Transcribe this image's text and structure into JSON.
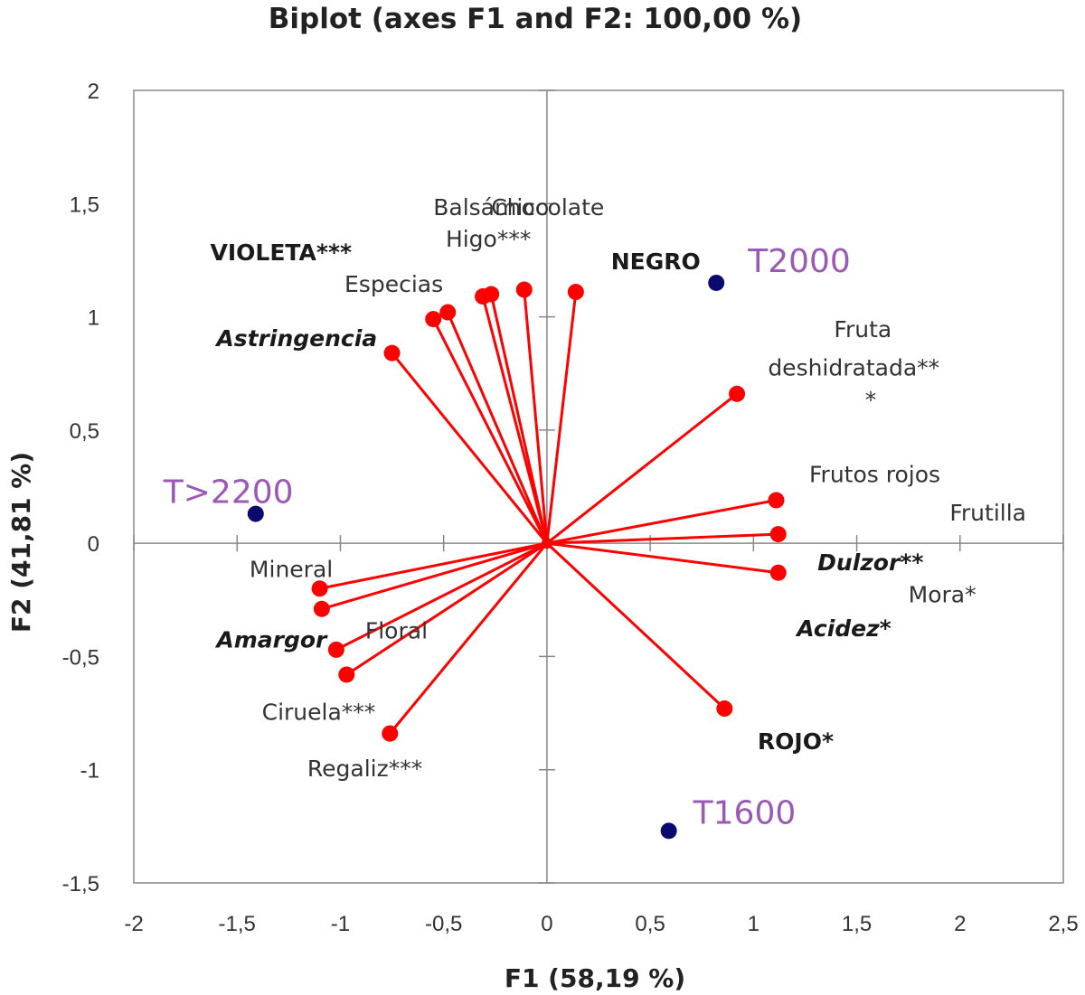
{
  "chart_data": {
    "type": "scatter",
    "subtype": "biplot",
    "title": "Biplot (axes F1 and F2: 100,00 %)",
    "xlabel": "F1 (58,19 %)",
    "ylabel": "F2 (41,81 %)",
    "xlim": [
      -2,
      2.5
    ],
    "ylim": [
      -1.5,
      2
    ],
    "x_ticks": [
      -2,
      -1.5,
      -1,
      -0.5,
      0,
      0.5,
      1,
      1.5,
      2,
      2.5
    ],
    "x_tick_labels": [
      "-2",
      "-1,5",
      "-1",
      "-0,5",
      "0",
      "0,5",
      "1",
      "1,5",
      "2",
      "2,5"
    ],
    "y_ticks": [
      -1.5,
      -1,
      -0.5,
      0,
      0.5,
      1,
      1.5,
      2
    ],
    "y_tick_labels": [
      "-1,5",
      "-1",
      "-0,5",
      "0",
      "0,5",
      "1",
      "1,5",
      "2"
    ],
    "grid": false,
    "legend": "none",
    "colors": {
      "variables": "#ff0000",
      "observations": "#0a0a6e",
      "observation_labels": "#9b59b6",
      "frame": "#888888"
    },
    "variables": [
      {
        "x": -0.75,
        "y": 0.84
      },
      {
        "x": -0.55,
        "y": 0.99
      },
      {
        "x": -0.48,
        "y": 1.02
      },
      {
        "x": -0.31,
        "y": 1.09
      },
      {
        "x": -0.27,
        "y": 1.1
      },
      {
        "x": -0.11,
        "y": 1.12
      },
      {
        "x": 0.14,
        "y": 1.11
      },
      {
        "x": 0.92,
        "y": 0.66
      },
      {
        "x": 1.11,
        "y": 0.19
      },
      {
        "x": 1.12,
        "y": 0.04
      },
      {
        "x": 1.12,
        "y": -0.13
      },
      {
        "x": 0.86,
        "y": -0.73
      },
      {
        "x": -1.1,
        "y": -0.2
      },
      {
        "x": -1.09,
        "y": -0.29
      },
      {
        "x": -1.02,
        "y": -0.47
      },
      {
        "x": -0.97,
        "y": -0.58
      },
      {
        "x": -0.76,
        "y": -0.84
      }
    ],
    "observations": [
      {
        "name": "T2000",
        "x": 0.82,
        "y": 1.15
      },
      {
        "name": "T>2200",
        "x": -1.41,
        "y": 0.13
      },
      {
        "name": "T1600",
        "x": 0.59,
        "y": -1.27
      }
    ],
    "labels": [
      {
        "text": "Balsámico",
        "x": -0.55,
        "y": 1.45
      },
      {
        "text": "Chocolate",
        "x": -0.27,
        "y": 1.45
      },
      {
        "text": "Higo***",
        "x": -0.49,
        "y": 1.31
      },
      {
        "text": "VIOLETA***",
        "x": -1.63,
        "y": 1.25,
        "bold": true
      },
      {
        "text": "NEGRO",
        "x": 0.31,
        "y": 1.21,
        "bold": true
      },
      {
        "text": "Especias",
        "x": -0.98,
        "y": 1.11
      },
      {
        "text": "Astringencia",
        "x": -1.6,
        "y": 0.87,
        "bold": true,
        "italic": true
      },
      {
        "text": "Fruta",
        "x": 1.39,
        "y": 0.91
      },
      {
        "text": "deshidratada**",
        "x": 1.07,
        "y": 0.74
      },
      {
        "text": "*",
        "x": 1.54,
        "y": 0.6
      },
      {
        "text": "Frutos rojos",
        "x": 1.27,
        "y": 0.27
      },
      {
        "text": "Frutilla",
        "x": 1.95,
        "y": 0.1
      },
      {
        "text": "Dulzor**",
        "x": 1.31,
        "y": -0.12,
        "bold": true,
        "italic": true
      },
      {
        "text": "Mora*",
        "x": 1.75,
        "y": -0.26
      },
      {
        "text": "Acidez*",
        "x": 1.21,
        "y": -0.41,
        "bold": true,
        "italic": true
      },
      {
        "text": "ROJO*",
        "x": 1.02,
        "y": -0.91,
        "bold": true
      },
      {
        "text": "Mineral",
        "x": -1.44,
        "y": -0.15
      },
      {
        "text": "Amargor",
        "x": -1.6,
        "y": -0.46,
        "bold": true,
        "italic": true
      },
      {
        "text": "Floral",
        "x": -0.88,
        "y": -0.42
      },
      {
        "text": "Ciruela***",
        "x": -1.38,
        "y": -0.78
      },
      {
        "text": "Regaliz***",
        "x": -1.16,
        "y": -1.03
      }
    ]
  }
}
